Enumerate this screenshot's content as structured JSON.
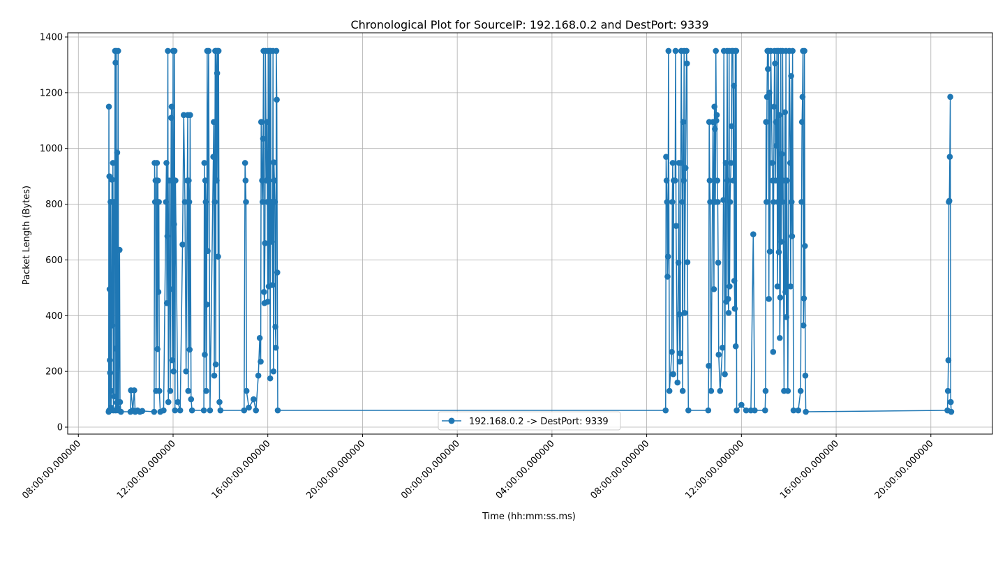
{
  "chart_data": {
    "type": "line",
    "title": "Chronological Plot for SourceIP: 192.168.0.2 and DestPort: 9339",
    "xlabel": "Time (hh:mm:ss.ms)",
    "ylabel": "Packet Length (Bytes)",
    "x_axis": "datetime (hours elapsed since first tick at 08:00)",
    "xlim_hours": [
      -0.45,
      38.6
    ],
    "ylim": [
      -25,
      1415
    ],
    "grid": true,
    "legend_placement": "lower center",
    "x_ticks": [
      {
        "hours": 0,
        "label": "08:00:00.000000"
      },
      {
        "hours": 4,
        "label": "12:00:00.000000"
      },
      {
        "hours": 8,
        "label": "16:00:00.000000"
      },
      {
        "hours": 12,
        "label": "20:00:00.000000"
      },
      {
        "hours": 16,
        "label": "00:00:00.000000"
      },
      {
        "hours": 20,
        "label": "04:00:00.000000"
      },
      {
        "hours": 24,
        "label": "08:00:00.000000"
      },
      {
        "hours": 28,
        "label": "12:00:00.000000"
      },
      {
        "hours": 32,
        "label": "16:00:00.000000"
      },
      {
        "hours": 36,
        "label": "20:00:00.000000"
      }
    ],
    "y_ticks": [
      0,
      200,
      400,
      600,
      800,
      1000,
      1200,
      1400
    ],
    "series": [
      {
        "name": "192.168.0.2 -> DestPort: 9339",
        "color": "#1f77b4",
        "marker": "circle",
        "points": [
          [
            1.28,
            55
          ],
          [
            1.29,
            1150
          ],
          [
            1.3,
            60
          ],
          [
            1.31,
            900
          ],
          [
            1.32,
            495
          ],
          [
            1.33,
            240
          ],
          [
            1.34,
            195
          ],
          [
            1.35,
            60
          ],
          [
            1.36,
            808
          ],
          [
            1.38,
            70
          ],
          [
            1.4,
            130
          ],
          [
            1.42,
            888
          ],
          [
            1.44,
            365
          ],
          [
            1.46,
            948
          ],
          [
            1.48,
            60
          ],
          [
            1.5,
            808
          ],
          [
            1.52,
            110
          ],
          [
            1.55,
            1350
          ],
          [
            1.57,
            1308
          ],
          [
            1.58,
            60
          ],
          [
            1.59,
            282
          ],
          [
            1.6,
            1350
          ],
          [
            1.62,
            88
          ],
          [
            1.64,
            985
          ],
          [
            1.66,
            70
          ],
          [
            1.68,
            1350
          ],
          [
            1.7,
            60
          ],
          [
            1.74,
            636
          ],
          [
            1.76,
            90
          ],
          [
            1.8,
            55
          ],
          [
            2.2,
            55
          ],
          [
            2.22,
            132
          ],
          [
            2.3,
            60
          ],
          [
            2.36,
            132
          ],
          [
            2.4,
            55
          ],
          [
            2.5,
            60
          ],
          [
            2.6,
            55
          ],
          [
            2.7,
            58
          ],
          [
            3.2,
            55
          ],
          [
            3.22,
            948
          ],
          [
            3.24,
            808
          ],
          [
            3.26,
            885
          ],
          [
            3.28,
            130
          ],
          [
            3.32,
            948
          ],
          [
            3.34,
            280
          ],
          [
            3.36,
            885
          ],
          [
            3.38,
            485
          ],
          [
            3.4,
            808
          ],
          [
            3.42,
            130
          ],
          [
            3.46,
            55
          ],
          [
            3.6,
            60
          ],
          [
            3.7,
            808
          ],
          [
            3.72,
            948
          ],
          [
            3.74,
            445
          ],
          [
            3.76,
            685
          ],
          [
            3.78,
            1350
          ],
          [
            3.8,
            90
          ],
          [
            3.84,
            885
          ],
          [
            3.88,
            130
          ],
          [
            3.92,
            1110
          ],
          [
            3.94,
            1150
          ],
          [
            3.96,
            240
          ],
          [
            3.98,
            495
          ],
          [
            4.0,
            1350
          ],
          [
            4.02,
            200
          ],
          [
            4.04,
            728
          ],
          [
            4.06,
            1350
          ],
          [
            4.08,
            60
          ],
          [
            4.1,
            885
          ],
          [
            4.2,
            90
          ],
          [
            4.3,
            60
          ],
          [
            4.4,
            655
          ],
          [
            4.45,
            1120
          ],
          [
            4.5,
            808
          ],
          [
            4.55,
            200
          ],
          [
            4.6,
            885
          ],
          [
            4.62,
            1120
          ],
          [
            4.64,
            130
          ],
          [
            4.66,
            885
          ],
          [
            4.68,
            808
          ],
          [
            4.7,
            278
          ],
          [
            4.72,
            1120
          ],
          [
            4.76,
            100
          ],
          [
            4.8,
            60
          ],
          [
            5.3,
            60
          ],
          [
            5.32,
            948
          ],
          [
            5.34,
            260
          ],
          [
            5.36,
            885
          ],
          [
            5.38,
            808
          ],
          [
            5.4,
            130
          ],
          [
            5.42,
            440
          ],
          [
            5.44,
            1350
          ],
          [
            5.46,
            632
          ],
          [
            5.5,
            1350
          ],
          [
            5.56,
            60
          ],
          [
            5.7,
            970
          ],
          [
            5.72,
            1095
          ],
          [
            5.74,
            185
          ],
          [
            5.76,
            808
          ],
          [
            5.78,
            1350
          ],
          [
            5.8,
            225
          ],
          [
            5.82,
            1350
          ],
          [
            5.84,
            885
          ],
          [
            5.86,
            1270
          ],
          [
            5.88,
            1350
          ],
          [
            5.9,
            612
          ],
          [
            5.92,
            1350
          ],
          [
            5.96,
            90
          ],
          [
            6.0,
            60
          ],
          [
            7.0,
            60
          ],
          [
            7.04,
            948
          ],
          [
            7.06,
            885
          ],
          [
            7.08,
            808
          ],
          [
            7.1,
            130
          ],
          [
            7.2,
            70
          ],
          [
            7.4,
            100
          ],
          [
            7.5,
            60
          ],
          [
            7.6,
            185
          ],
          [
            7.66,
            320
          ],
          [
            7.7,
            235
          ],
          [
            7.72,
            1095
          ],
          [
            7.76,
            885
          ],
          [
            7.78,
            808
          ],
          [
            7.8,
            1035
          ],
          [
            7.82,
            1350
          ],
          [
            7.84,
            485
          ],
          [
            7.86,
            445
          ],
          [
            7.88,
            660
          ],
          [
            7.9,
            1350
          ],
          [
            7.94,
            885
          ],
          [
            7.96,
            1095
          ],
          [
            7.98,
            808
          ],
          [
            8.0,
            450
          ],
          [
            8.02,
            1350
          ],
          [
            8.04,
            505
          ],
          [
            8.06,
            885
          ],
          [
            8.08,
            1350
          ],
          [
            8.1,
            175
          ],
          [
            8.12,
            1350
          ],
          [
            8.14,
            690
          ],
          [
            8.16,
            665
          ],
          [
            8.18,
            808
          ],
          [
            8.2,
            510
          ],
          [
            8.22,
            1350
          ],
          [
            8.24,
            200
          ],
          [
            8.26,
            950
          ],
          [
            8.28,
            885
          ],
          [
            8.3,
            808
          ],
          [
            8.32,
            360
          ],
          [
            8.34,
            285
          ],
          [
            8.36,
            1350
          ],
          [
            8.38,
            1175
          ],
          [
            8.4,
            555
          ],
          [
            8.42,
            60
          ],
          [
            24.8,
            60
          ],
          [
            24.82,
            970
          ],
          [
            24.84,
            885
          ],
          [
            24.86,
            808
          ],
          [
            24.88,
            540
          ],
          [
            24.9,
            612
          ],
          [
            24.92,
            1350
          ],
          [
            24.96,
            130
          ],
          [
            25.06,
            270
          ],
          [
            25.08,
            808
          ],
          [
            25.1,
            948
          ],
          [
            25.12,
            190
          ],
          [
            25.14,
            885
          ],
          [
            25.2,
            885
          ],
          [
            25.22,
            1350
          ],
          [
            25.24,
            722
          ],
          [
            25.3,
            160
          ],
          [
            25.34,
            590
          ],
          [
            25.36,
            948
          ],
          [
            25.38,
            405
          ],
          [
            25.4,
            235
          ],
          [
            25.42,
            265
          ],
          [
            25.44,
            948
          ],
          [
            25.46,
            1350
          ],
          [
            25.5,
            808
          ],
          [
            25.52,
            130
          ],
          [
            25.54,
            1095
          ],
          [
            25.56,
            885
          ],
          [
            25.58,
            1350
          ],
          [
            25.6,
            410
          ],
          [
            25.64,
            930
          ],
          [
            25.68,
            1350
          ],
          [
            25.7,
            1305
          ],
          [
            25.72,
            592
          ],
          [
            25.76,
            60
          ],
          [
            26.6,
            60
          ],
          [
            26.62,
            220
          ],
          [
            26.64,
            1095
          ],
          [
            26.66,
            885
          ],
          [
            26.68,
            808
          ],
          [
            26.72,
            130
          ],
          [
            26.8,
            1095
          ],
          [
            26.84,
            495
          ],
          [
            26.86,
            1150
          ],
          [
            26.88,
            1070
          ],
          [
            26.9,
            808
          ],
          [
            26.92,
            1350
          ],
          [
            26.94,
            1100
          ],
          [
            26.96,
            1120
          ],
          [
            26.98,
            885
          ],
          [
            27.0,
            808
          ],
          [
            27.02,
            590
          ],
          [
            27.04,
            260
          ],
          [
            27.1,
            130
          ],
          [
            27.2,
            285
          ],
          [
            27.24,
            815
          ],
          [
            27.26,
            1350
          ],
          [
            27.3,
            190
          ],
          [
            27.34,
            948
          ],
          [
            27.36,
            450
          ],
          [
            27.4,
            1350
          ],
          [
            27.42,
            885
          ],
          [
            27.44,
            460
          ],
          [
            27.46,
            410
          ],
          [
            27.48,
            1350
          ],
          [
            27.5,
            505
          ],
          [
            27.52,
            808
          ],
          [
            27.56,
            948
          ],
          [
            27.58,
            1080
          ],
          [
            27.6,
            1350
          ],
          [
            27.64,
            1350
          ],
          [
            27.66,
            885
          ],
          [
            27.68,
            1225
          ],
          [
            27.7,
            525
          ],
          [
            27.72,
            425
          ],
          [
            27.74,
            1350
          ],
          [
            27.76,
            290
          ],
          [
            27.78,
            1350
          ],
          [
            27.8,
            60
          ],
          [
            28.0,
            80
          ],
          [
            28.2,
            60
          ],
          [
            28.4,
            60
          ],
          [
            28.5,
            692
          ],
          [
            28.56,
            60
          ],
          [
            29.0,
            60
          ],
          [
            29.02,
            130
          ],
          [
            29.04,
            1095
          ],
          [
            29.06,
            808
          ],
          [
            29.08,
            1185
          ],
          [
            29.1,
            1350
          ],
          [
            29.12,
            1285
          ],
          [
            29.14,
            1350
          ],
          [
            29.16,
            460
          ],
          [
            29.18,
            1200
          ],
          [
            29.2,
            630
          ],
          [
            29.24,
            1350
          ],
          [
            29.3,
            948
          ],
          [
            29.32,
            885
          ],
          [
            29.34,
            270
          ],
          [
            29.36,
            808
          ],
          [
            29.38,
            1150
          ],
          [
            29.4,
            1350
          ],
          [
            29.42,
            1305
          ],
          [
            29.44,
            885
          ],
          [
            29.46,
            1095
          ],
          [
            29.48,
            1010
          ],
          [
            29.5,
            1350
          ],
          [
            29.52,
            505
          ],
          [
            29.54,
            808
          ],
          [
            29.56,
            1350
          ],
          [
            29.58,
            628
          ],
          [
            29.6,
            1120
          ],
          [
            29.62,
            320
          ],
          [
            29.64,
            465
          ],
          [
            29.66,
            1350
          ],
          [
            29.68,
            665
          ],
          [
            29.7,
            980
          ],
          [
            29.72,
            808
          ],
          [
            29.74,
            1350
          ],
          [
            29.76,
            885
          ],
          [
            29.8,
            130
          ],
          [
            29.84,
            1130
          ],
          [
            29.86,
            485
          ],
          [
            29.88,
            1350
          ],
          [
            29.9,
            395
          ],
          [
            29.92,
            885
          ],
          [
            29.96,
            130
          ],
          [
            30.02,
            1350
          ],
          [
            30.06,
            948
          ],
          [
            30.08,
            505
          ],
          [
            30.1,
            1260
          ],
          [
            30.12,
            808
          ],
          [
            30.14,
            685
          ],
          [
            30.16,
            1350
          ],
          [
            30.2,
            60
          ],
          [
            30.4,
            60
          ],
          [
            30.5,
            130
          ],
          [
            30.54,
            808
          ],
          [
            30.56,
            1095
          ],
          [
            30.58,
            1185
          ],
          [
            30.6,
            1350
          ],
          [
            30.62,
            365
          ],
          [
            30.64,
            462
          ],
          [
            30.66,
            1350
          ],
          [
            30.68,
            650
          ],
          [
            30.7,
            185
          ],
          [
            30.72,
            55
          ],
          [
            36.7,
            60
          ],
          [
            36.72,
            130
          ],
          [
            36.74,
            240
          ],
          [
            36.76,
            808
          ],
          [
            36.78,
            812
          ],
          [
            36.8,
            970
          ],
          [
            36.82,
            1185
          ],
          [
            36.84,
            90
          ],
          [
            36.86,
            55
          ]
        ]
      }
    ]
  },
  "legend": {
    "label": "192.168.0.2 -> DestPort: 9339"
  }
}
